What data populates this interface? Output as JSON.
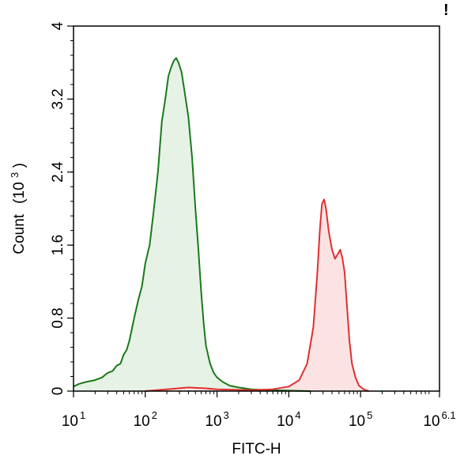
{
  "corner_mark": "!",
  "chart_data": {
    "type": "area",
    "xlabel": "FITC-H",
    "ylabel_text": "Count",
    "ylabel_unit_base": "(10",
    "ylabel_unit_exp": "3",
    "ylabel_unit_close": ")",
    "xscale": "log",
    "xlim": [
      10,
      1258925
    ],
    "ylim": [
      0,
      4
    ],
    "y_ticks": [
      "0",
      "0.8",
      "1.6",
      "2.4",
      "3.2",
      "4"
    ],
    "x_ticks": [
      {
        "base": "10",
        "exp": "1",
        "value": 10
      },
      {
        "base": "10",
        "exp": "2",
        "value": 100
      },
      {
        "base": "10",
        "exp": "3",
        "value": 1000
      },
      {
        "base": "10",
        "exp": "4",
        "value": 10000
      },
      {
        "base": "10",
        "exp": "5",
        "value": 100000
      },
      {
        "base": "10",
        "exp": "6.1",
        "value": 1258925
      }
    ],
    "grid": false,
    "series": [
      {
        "color": "#1a7a1a",
        "fill": "#e6f2e6",
        "points": [
          [
            10,
            0.05
          ],
          [
            12,
            0.08
          ],
          [
            15,
            0.1
          ],
          [
            20,
            0.12
          ],
          [
            25,
            0.15
          ],
          [
            30,
            0.2
          ],
          [
            35,
            0.22
          ],
          [
            40,
            0.28
          ],
          [
            45,
            0.3
          ],
          [
            50,
            0.4
          ],
          [
            55,
            0.45
          ],
          [
            60,
            0.55
          ],
          [
            65,
            0.68
          ],
          [
            70,
            0.8
          ],
          [
            80,
            1.0
          ],
          [
            90,
            1.15
          ],
          [
            100,
            1.4
          ],
          [
            115,
            1.6
          ],
          [
            130,
            1.95
          ],
          [
            150,
            2.4
          ],
          [
            170,
            2.95
          ],
          [
            190,
            3.2
          ],
          [
            210,
            3.45
          ],
          [
            230,
            3.55
          ],
          [
            250,
            3.62
          ],
          [
            270,
            3.65
          ],
          [
            290,
            3.6
          ],
          [
            320,
            3.5
          ],
          [
            350,
            3.3
          ],
          [
            400,
            3.0
          ],
          [
            450,
            2.55
          ],
          [
            500,
            2.0
          ],
          [
            550,
            1.55
          ],
          [
            600,
            1.1
          ],
          [
            650,
            0.75
          ],
          [
            700,
            0.5
          ],
          [
            800,
            0.3
          ],
          [
            900,
            0.2
          ],
          [
            1000,
            0.15
          ],
          [
            1200,
            0.1
          ],
          [
            1500,
            0.06
          ],
          [
            2000,
            0.04
          ],
          [
            3000,
            0.02
          ],
          [
            5000,
            0.01
          ],
          [
            10000,
            0.005
          ],
          [
            20000,
            0
          ]
        ]
      },
      {
        "color": "#e03030",
        "fill": "#fbe3e3",
        "points": [
          [
            100,
            0
          ],
          [
            200,
            0.02
          ],
          [
            400,
            0.04
          ],
          [
            700,
            0.03
          ],
          [
            1000,
            0.02
          ],
          [
            3000,
            0.01
          ],
          [
            6000,
            0.02
          ],
          [
            10000,
            0.05
          ],
          [
            14000,
            0.12
          ],
          [
            18000,
            0.3
          ],
          [
            22000,
            0.7
          ],
          [
            25000,
            1.3
          ],
          [
            27000,
            1.75
          ],
          [
            29000,
            2.05
          ],
          [
            31000,
            2.1
          ],
          [
            33000,
            2.0
          ],
          [
            36000,
            1.75
          ],
          [
            40000,
            1.55
          ],
          [
            44000,
            1.45
          ],
          [
            48000,
            1.5
          ],
          [
            52000,
            1.55
          ],
          [
            56000,
            1.45
          ],
          [
            60000,
            1.3
          ],
          [
            65000,
            0.9
          ],
          [
            70000,
            0.55
          ],
          [
            76000,
            0.3
          ],
          [
            85000,
            0.15
          ],
          [
            95000,
            0.06
          ],
          [
            110000,
            0.02
          ],
          [
            130000,
            0
          ]
        ]
      }
    ]
  }
}
